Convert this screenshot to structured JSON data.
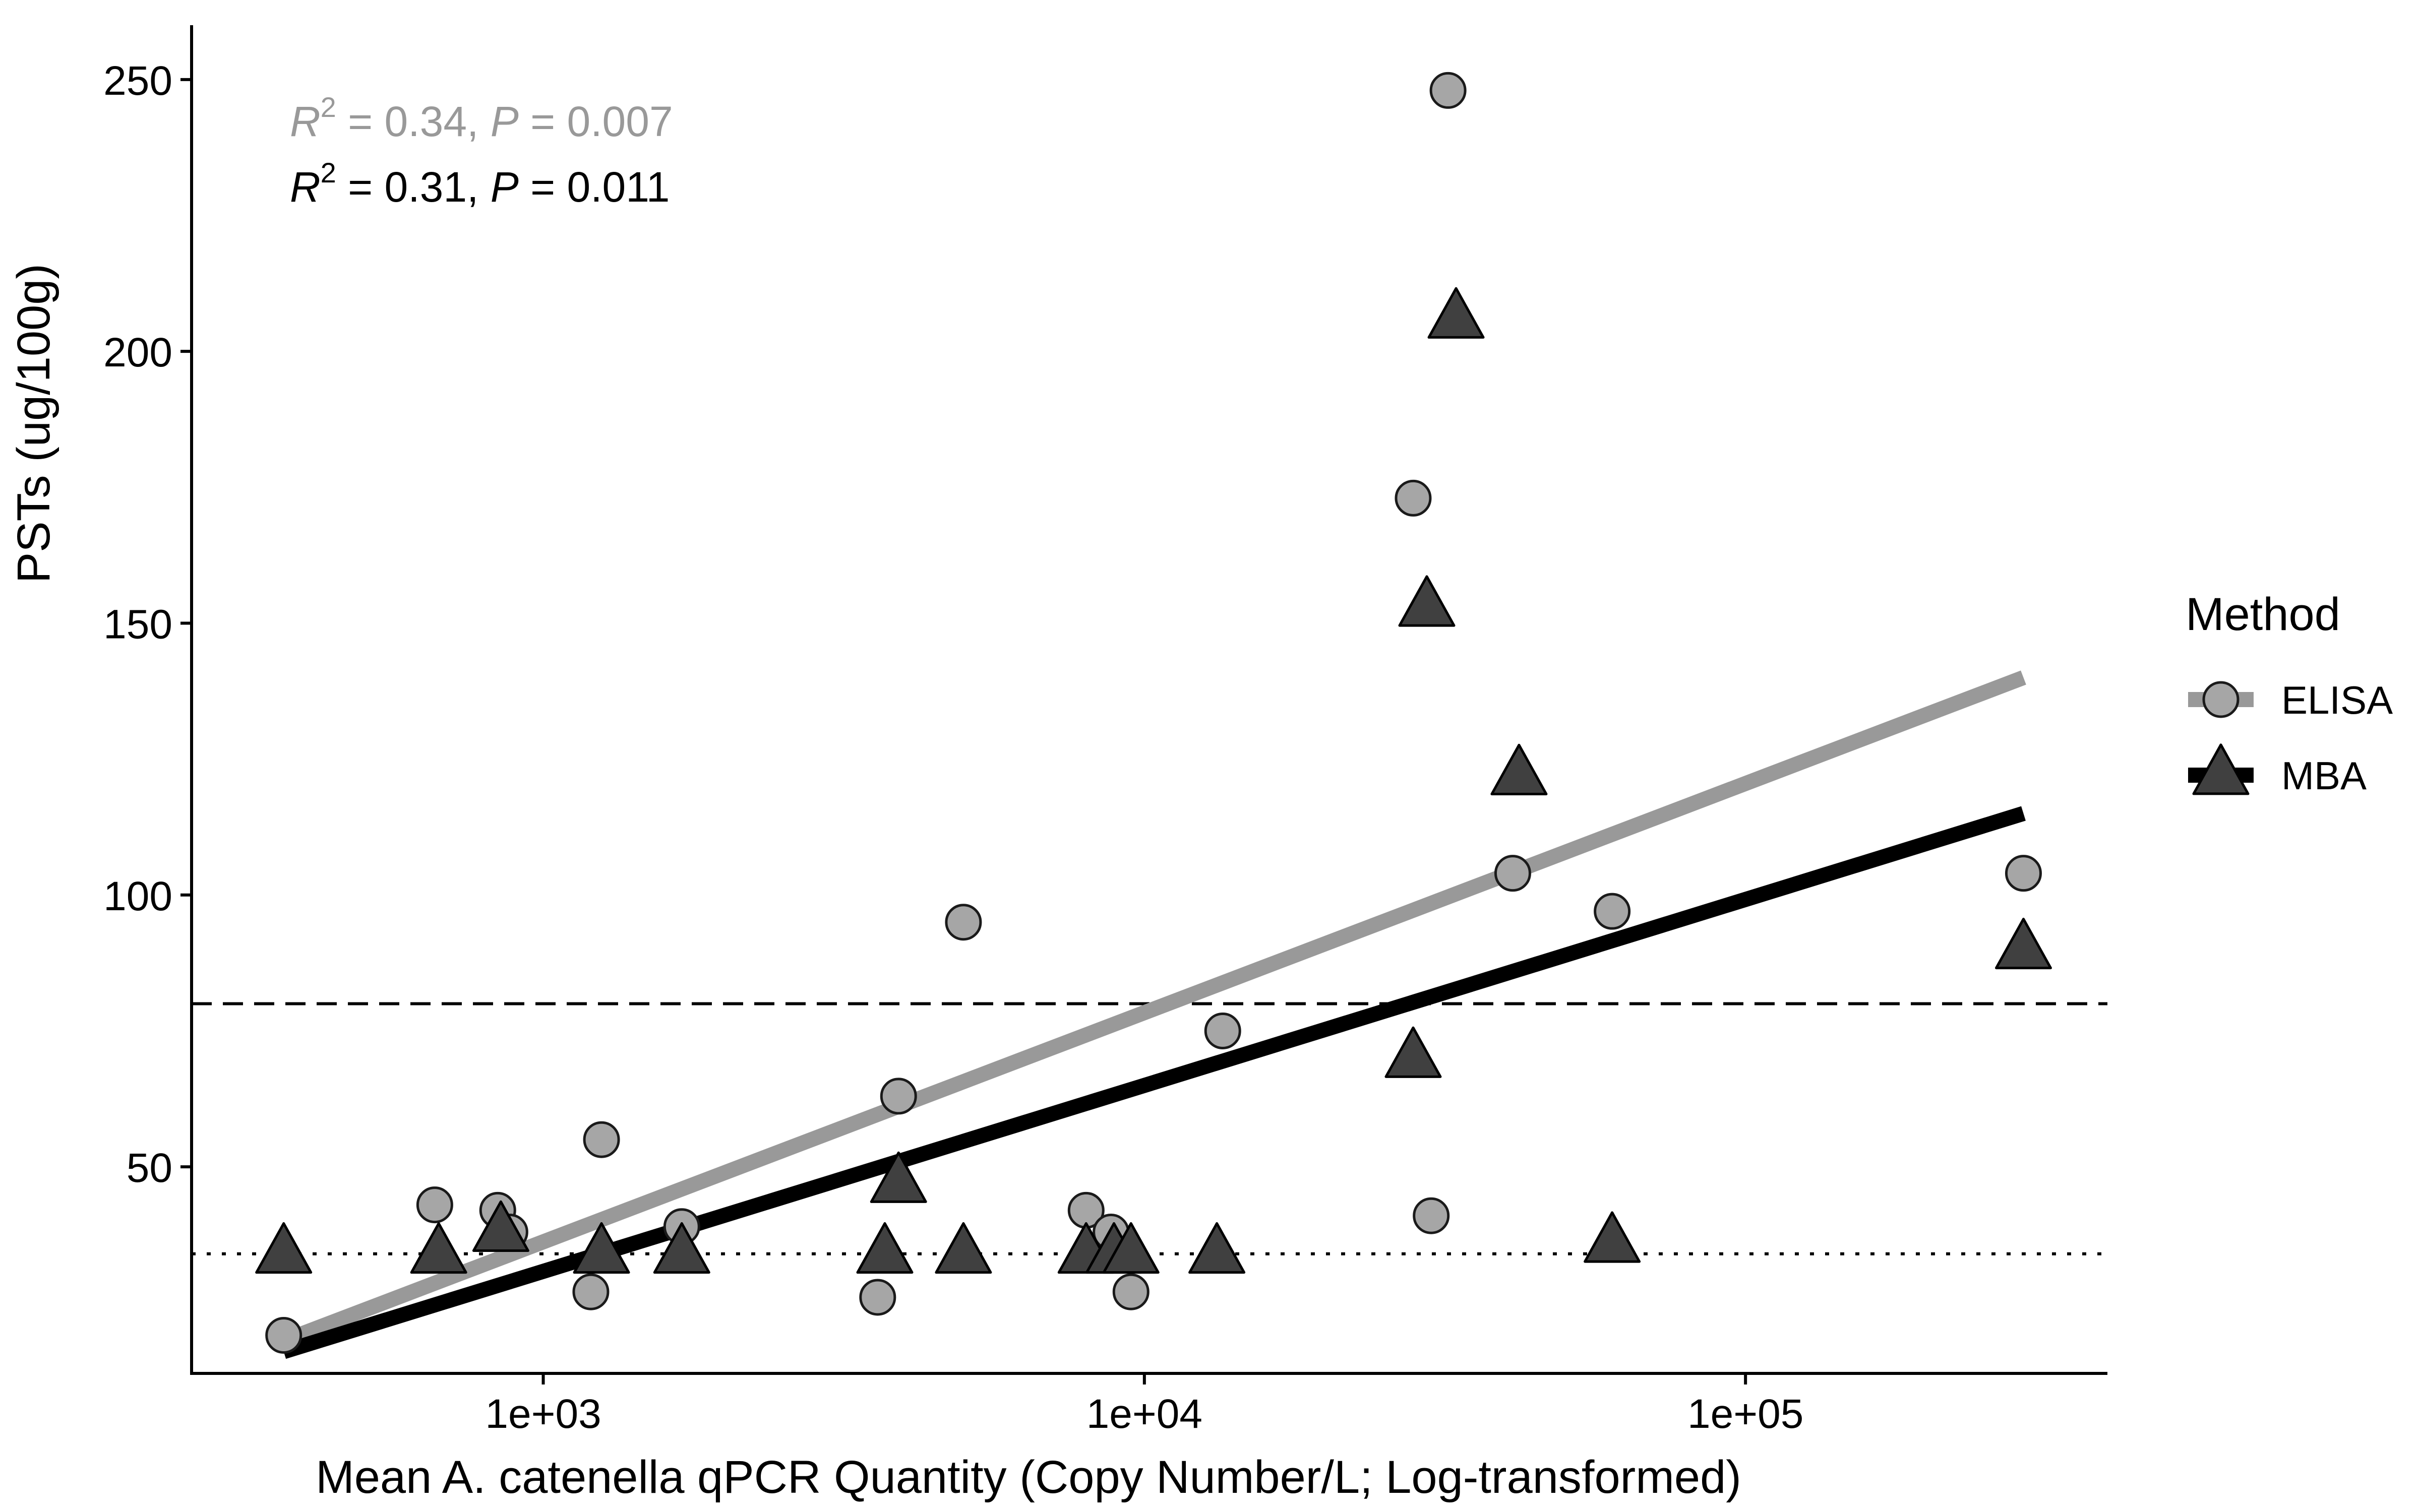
{
  "chart_data": {
    "type": "scatter",
    "xlabel": "Mean A. catenella qPCR Quantity (Copy Number/L; Log-transformed)",
    "ylabel": "PSTs (ug/100g)",
    "x_scale": "log10",
    "xlim": [
      260,
      400000
    ],
    "ylim": [
      12,
      260
    ],
    "x_ticks": [
      1000,
      10000,
      100000
    ],
    "x_tick_labels": [
      "1e+03",
      "1e+04",
      "1e+05"
    ],
    "y_ticks": [
      50,
      100,
      150,
      200,
      250
    ],
    "y_tick_labels": [
      "50",
      "100",
      "150",
      "200",
      "250"
    ],
    "grid": false,
    "legend": {
      "title": "Method",
      "position": "right",
      "entries": [
        "ELISA",
        "MBA"
      ]
    },
    "reference_lines": [
      {
        "style": "dashed",
        "y": 80
      },
      {
        "style": "dotted",
        "y": 34
      }
    ],
    "series": [
      {
        "name": "ELISA",
        "marker": "circle",
        "color": "#a6a6a6",
        "line_color": "#999999",
        "fit": {
          "x": [
            370,
            290000
          ],
          "y": [
            18,
            140
          ]
        },
        "annotation": {
          "r2_label": "R",
          "r2_value": " = 0.34, ",
          "p_label": "P",
          "p_value": " = 0.007"
        },
        "points": [
          {
            "x": 370,
            "y": 19
          },
          {
            "x": 660,
            "y": 43
          },
          {
            "x": 840,
            "y": 42
          },
          {
            "x": 880,
            "y": 38
          },
          {
            "x": 1200,
            "y": 27
          },
          {
            "x": 1250,
            "y": 55
          },
          {
            "x": 1700,
            "y": 39
          },
          {
            "x": 3600,
            "y": 26
          },
          {
            "x": 3900,
            "y": 63
          },
          {
            "x": 5000,
            "y": 95
          },
          {
            "x": 8000,
            "y": 42
          },
          {
            "x": 8800,
            "y": 38
          },
          {
            "x": 9500,
            "y": 27
          },
          {
            "x": 13500,
            "y": 75
          },
          {
            "x": 28000,
            "y": 173
          },
          {
            "x": 30000,
            "y": 41
          },
          {
            "x": 32000,
            "y": 248
          },
          {
            "x": 41000,
            "y": 104
          },
          {
            "x": 60000,
            "y": 97
          },
          {
            "x": 290000,
            "y": 104
          }
        ]
      },
      {
        "name": "MBA",
        "marker": "triangle",
        "color": "#404040",
        "line_color": "#000000",
        "fit": {
          "x": [
            370,
            290000
          ],
          "y": [
            16,
            115
          ]
        },
        "annotation": {
          "r2_label": "R",
          "r2_value": " = 0.31, ",
          "p_label": "P",
          "p_value": " = 0.011"
        },
        "points": [
          {
            "x": 370,
            "y": 34
          },
          {
            "x": 670,
            "y": 34
          },
          {
            "x": 850,
            "y": 38
          },
          {
            "x": 1250,
            "y": 34
          },
          {
            "x": 1700,
            "y": 34
          },
          {
            "x": 3700,
            "y": 34
          },
          {
            "x": 3900,
            "y": 47
          },
          {
            "x": 5000,
            "y": 34
          },
          {
            "x": 8000,
            "y": 34
          },
          {
            "x": 8900,
            "y": 34
          },
          {
            "x": 9500,
            "y": 34
          },
          {
            "x": 13200,
            "y": 34
          },
          {
            "x": 28000,
            "y": 70
          },
          {
            "x": 29500,
            "y": 153
          },
          {
            "x": 33000,
            "y": 206
          },
          {
            "x": 42000,
            "y": 122
          },
          {
            "x": 60000,
            "y": 36
          },
          {
            "x": 290000,
            "y": 90
          }
        ]
      }
    ]
  }
}
